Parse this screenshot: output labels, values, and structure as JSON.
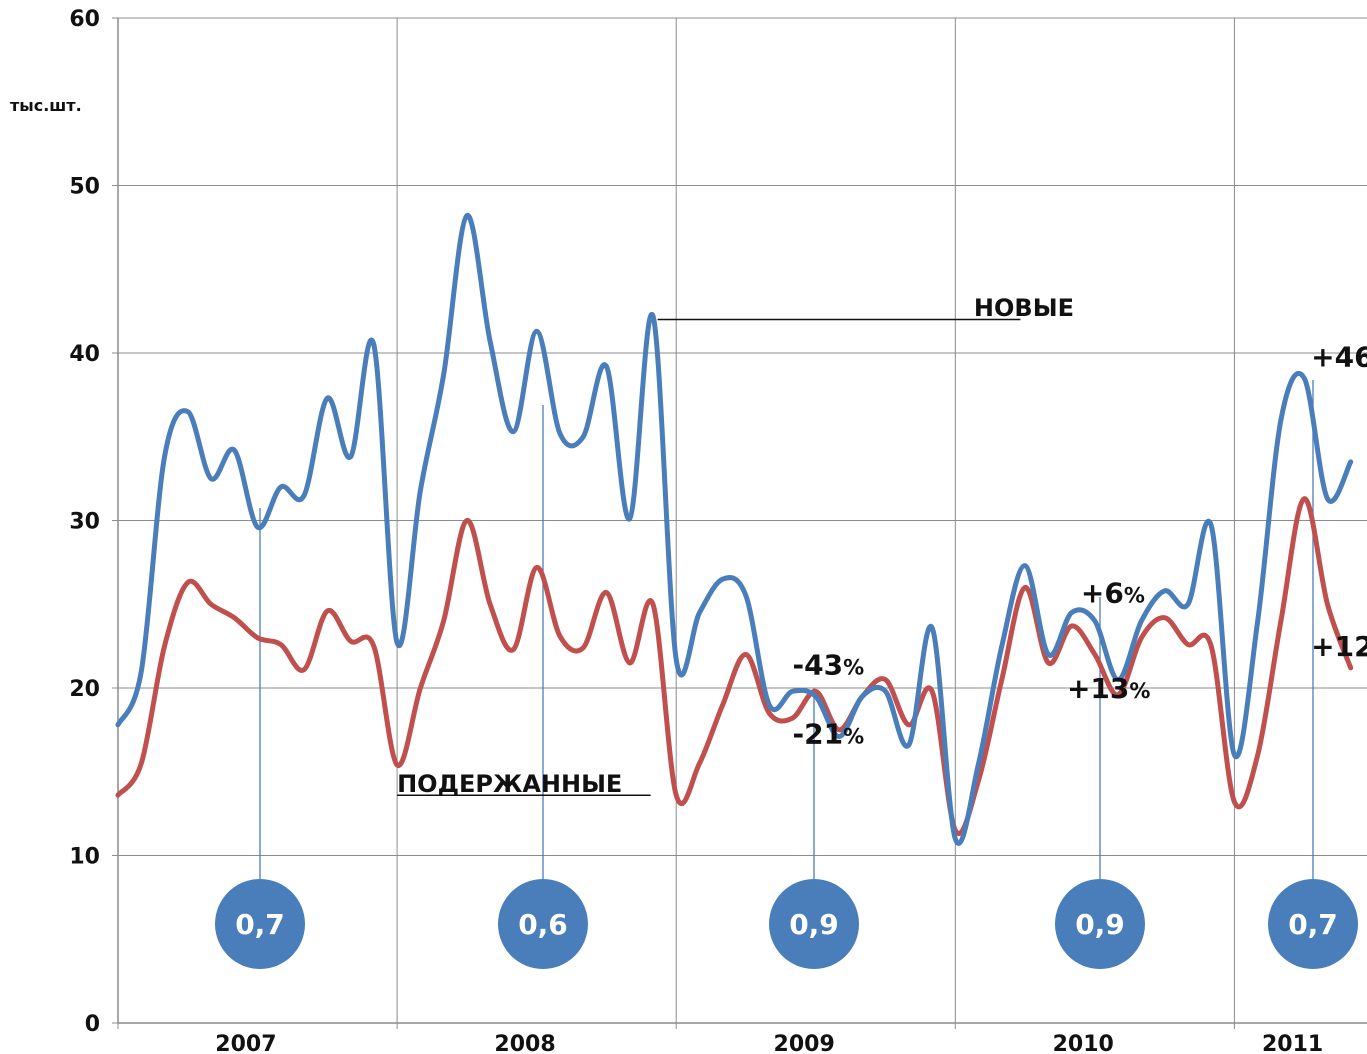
{
  "chart_data": {
    "type": "line",
    "ylabel": "тыс.шт.",
    "ylim": [
      0,
      60
    ],
    "yticks": [
      0,
      10,
      20,
      30,
      40,
      50,
      60
    ],
    "xlim": [
      0,
      53.7
    ],
    "year_labels": [
      {
        "label": "2007",
        "x": 5.5
      },
      {
        "label": "2008",
        "x": 17.5
      },
      {
        "label": "2009",
        "x": 29.5
      },
      {
        "label": "2010",
        "x": 41.5
      },
      {
        "label": "2011",
        "x": 50.5
      }
    ],
    "grid": true,
    "colors": {
      "new": "#4a7ebb",
      "used": "#c0504d",
      "bubble": "#4a7ebb",
      "grid": "#8c8c8c"
    },
    "series": [
      {
        "key": "new",
        "name": "НОВЫЕ",
        "values": [
          17.8,
          21.0,
          33.8,
          36.5,
          32.5,
          34.2,
          29.6,
          32.0,
          31.5,
          37.3,
          33.8,
          40.5,
          22.7,
          31.8,
          38.7,
          48.2,
          40.7,
          35.3,
          41.3,
          35.2,
          35.0,
          39.2,
          30.1,
          42.2,
          21.7,
          24.5,
          26.5,
          25.5,
          19.0,
          19.8,
          19.5,
          17.1,
          19.5,
          19.8,
          16.6,
          23.6,
          11.0,
          15.5,
          22.5,
          27.3,
          22.0,
          24.5,
          24.0,
          20.5,
          24.0,
          25.8,
          25.0,
          29.7,
          16.0,
          24.0,
          36.0,
          38.5,
          31.3,
          33.5
        ]
      },
      {
        "key": "used",
        "name": "ПОДЕРЖАННЫЕ",
        "values": [
          13.6,
          15.5,
          22.5,
          26.3,
          25.0,
          24.2,
          23.0,
          22.6,
          21.1,
          24.6,
          22.8,
          22.5,
          15.4,
          20.0,
          24.0,
          30.0,
          25.0,
          22.3,
          27.2,
          23.1,
          22.4,
          25.7,
          21.5,
          25.0,
          13.6,
          15.5,
          19.0,
          22.0,
          18.5,
          18.2,
          19.8,
          17.5,
          19.5,
          20.5,
          17.8,
          19.8,
          11.5,
          14.5,
          20.5,
          26.0,
          21.5,
          23.7,
          22.0,
          19.6,
          23.0,
          24.2,
          22.6,
          22.5,
          13.2,
          16.0,
          24.0,
          31.3,
          25.0,
          21.2
        ]
      }
    ],
    "annotations": [
      {
        "value": "+46",
        "unit": "%",
        "x": 51.3,
        "y": 39.2
      },
      {
        "value": "+12",
        "unit": "%",
        "x": 51.3,
        "y": 21.9
      },
      {
        "value": "+6",
        "unit": "%",
        "x": 41.4,
        "y": 25.1
      },
      {
        "value": "+13",
        "unit": "%",
        "x": 40.8,
        "y": 19.4
      },
      {
        "value": "-43",
        "unit": "%",
        "x": 29.0,
        "y": 20.8
      },
      {
        "value": "-21",
        "unit": "%",
        "x": 29.0,
        "y": 16.7
      }
    ],
    "series_labels": [
      {
        "key": "new",
        "text": "НОВЫЕ",
        "x": 36.8,
        "y": 42.2
      },
      {
        "key": "used",
        "text": "ПОДЕРЖАННЫЕ",
        "x": 12.0,
        "y": 13.8
      }
    ],
    "leader_lines": [
      {
        "from_x": 23.2,
        "from_y": 42.0,
        "to_x": 38.8,
        "to_y": 42.0
      },
      {
        "from_x": 12.0,
        "from_y": 13.6,
        "to_x": 22.9,
        "to_y": 13.6
      }
    ],
    "ratio_bubbles": [
      {
        "label": "0,7",
        "x": 5.8
      },
      {
        "label": "0,6",
        "x": 16.0
      },
      {
        "label": "0,9",
        "x": 26.0
      },
      {
        "label": "0,9",
        "x": 36.3
      },
      {
        "label": "0,7",
        "x": 43.9
      }
    ]
  }
}
